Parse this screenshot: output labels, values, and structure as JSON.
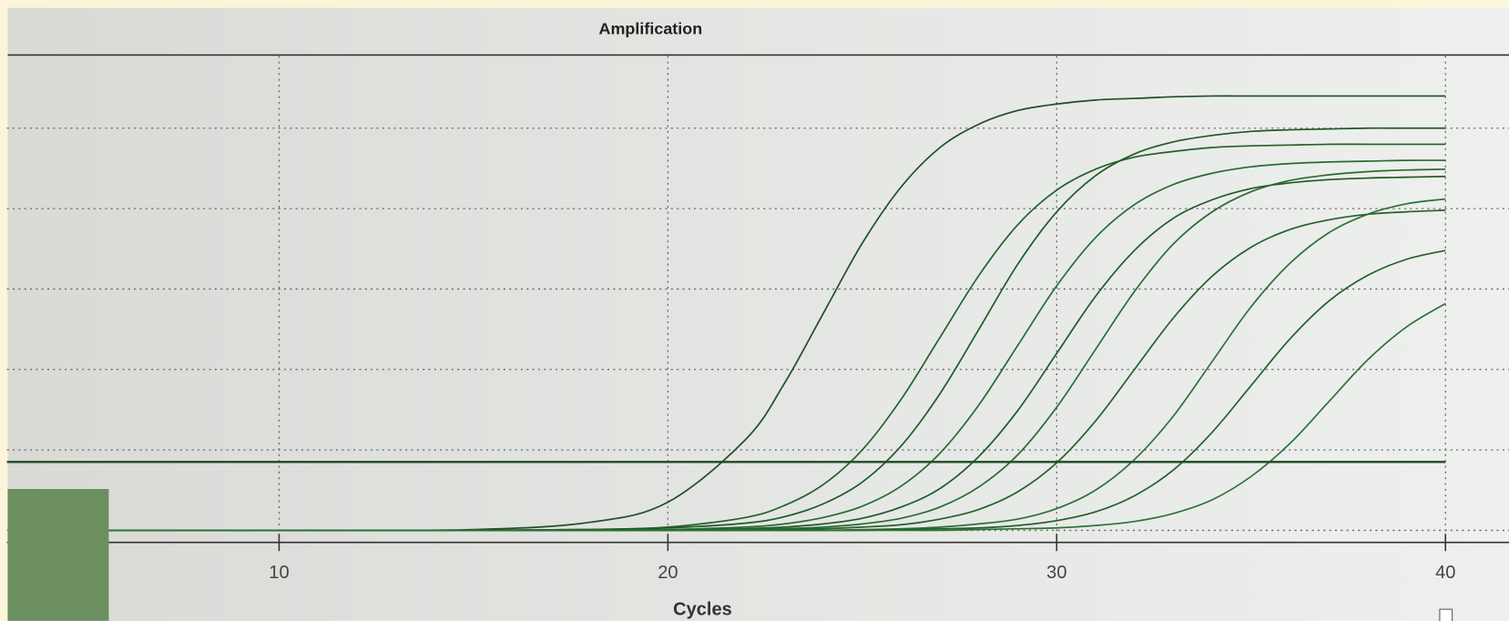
{
  "chart_data": {
    "type": "line",
    "title": "Amplification",
    "x_label": "Cycles",
    "x": [
      5,
      10,
      15,
      18,
      20,
      22,
      23,
      24,
      25,
      26,
      27,
      28,
      29,
      30,
      31,
      32,
      33,
      34,
      35,
      36,
      37,
      38,
      39,
      40
    ],
    "series": [
      {
        "color": "#1f4f26",
        "values": [
          0,
          0,
          0.01,
          0.1,
          0.35,
          1.13,
          1.83,
          2.7,
          3.57,
          4.27,
          4.76,
          5.05,
          5.22,
          5.3,
          5.35,
          5.37,
          5.39,
          5.4,
          5.4,
          5.4,
          5.4,
          5.4,
          5.4,
          5.4
        ]
      },
      {
        "color": "#24602c",
        "values": [
          0,
          0,
          0,
          0.01,
          0.04,
          0.16,
          0.31,
          0.57,
          1.0,
          1.63,
          2.4,
          3.17,
          3.8,
          4.23,
          4.49,
          4.64,
          4.71,
          4.76,
          4.78,
          4.79,
          4.8,
          4.8,
          4.8,
          4.8
        ]
      },
      {
        "color": "#1f5a28",
        "values": [
          0,
          0,
          0,
          0.01,
          0.03,
          0.09,
          0.17,
          0.33,
          0.6,
          1.05,
          1.7,
          2.5,
          3.31,
          3.96,
          4.41,
          4.68,
          4.83,
          4.91,
          4.96,
          4.98,
          4.99,
          5.0,
          5.0,
          5.0
        ]
      },
      {
        "color": "#2a6a33",
        "values": [
          0,
          0,
          0,
          0,
          0.01,
          0.04,
          0.08,
          0.16,
          0.3,
          0.55,
          0.96,
          1.56,
          2.3,
          3.04,
          3.64,
          4.05,
          4.3,
          4.44,
          4.52,
          4.56,
          4.58,
          4.59,
          4.6,
          4.6
        ]
      },
      {
        "color": "#1f5a28",
        "values": [
          0,
          0,
          0,
          0,
          0,
          0.02,
          0.04,
          0.08,
          0.15,
          0.29,
          0.52,
          0.92,
          1.49,
          2.2,
          2.91,
          3.48,
          3.88,
          4.11,
          4.25,
          4.32,
          4.36,
          4.38,
          4.39,
          4.4
        ]
      },
      {
        "color": "#2a6a33",
        "values": [
          0,
          0,
          0,
          0,
          0,
          0.01,
          0.02,
          0.04,
          0.08,
          0.15,
          0.29,
          0.54,
          0.94,
          1.53,
          2.25,
          2.97,
          3.56,
          3.96,
          4.21,
          4.35,
          4.42,
          4.46,
          4.48,
          4.49
        ]
      },
      {
        "color": "#24602c",
        "values": [
          0,
          0,
          0,
          0,
          0,
          0,
          0.01,
          0.02,
          0.04,
          0.07,
          0.14,
          0.26,
          0.48,
          0.84,
          1.36,
          2.0,
          2.64,
          3.16,
          3.52,
          3.74,
          3.86,
          3.93,
          3.96,
          3.98
        ]
      },
      {
        "color": "#2f7038",
        "values": [
          0,
          0,
          0,
          0,
          0,
          0,
          0,
          0,
          0.01,
          0.02,
          0.04,
          0.08,
          0.14,
          0.27,
          0.5,
          0.88,
          1.42,
          2.1,
          2.78,
          3.32,
          3.7,
          3.93,
          4.06,
          4.12
        ]
      },
      {
        "color": "#24602c",
        "values": [
          0,
          0,
          0,
          0,
          0,
          0,
          0,
          0,
          0,
          0.01,
          0.02,
          0.03,
          0.06,
          0.12,
          0.23,
          0.43,
          0.75,
          1.22,
          1.8,
          2.38,
          2.85,
          3.17,
          3.37,
          3.48
        ]
      },
      {
        "color": "#2f7038",
        "values": [
          0,
          0,
          0,
          0,
          0,
          0,
          0,
          0,
          0,
          0,
          0,
          0.01,
          0.02,
          0.03,
          0.06,
          0.11,
          0.21,
          0.38,
          0.67,
          1.08,
          1.6,
          2.12,
          2.53,
          2.82
        ]
      }
    ],
    "threshold": 0.85,
    "threshold_color": "#1d4a22",
    "xlim": [
      3,
      41.5
    ],
    "xticks": [
      10,
      20,
      30,
      40
    ],
    "ylim": [
      -0.15,
      5.9
    ],
    "yticks": [
      0,
      1,
      2,
      3,
      4,
      5
    ],
    "grid": true
  }
}
